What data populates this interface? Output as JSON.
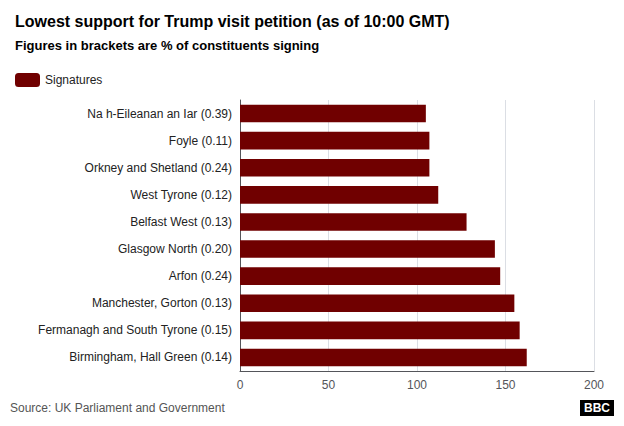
{
  "chart_data": {
    "type": "bar",
    "orientation": "horizontal",
    "title": "Lowest support for Trump visit petition (as of 10:00 GMT)",
    "subtitle": "Figures in brackets are % of constituents signing",
    "source": "Source: UK Parliament and Government",
    "annotations": [
      "BBC"
    ],
    "categories": [
      "Birmingham, Hall Green (0.14)",
      "Fermanagh and South Tyrone (0.15)",
      "Manchester, Gorton (0.13)",
      "Arfon (0.24)",
      "Glasgow North (0.20)",
      "Belfast West (0.13)",
      "West Tyrone (0.12)",
      "Orkney and Shetland (0.24)",
      "Foyle (0.11)",
      "Na h-Eileanan an Iar (0.39)"
    ],
    "series": [
      {
        "name": "Signatures",
        "color": "#700000",
        "values": [
          162,
          158,
          155,
          147,
          144,
          128,
          112,
          107,
          107,
          105
        ]
      }
    ],
    "xlim": [
      0,
      200
    ],
    "xticks": [
      0,
      50,
      100,
      150,
      200
    ],
    "grid": true,
    "legend": "upper left"
  }
}
